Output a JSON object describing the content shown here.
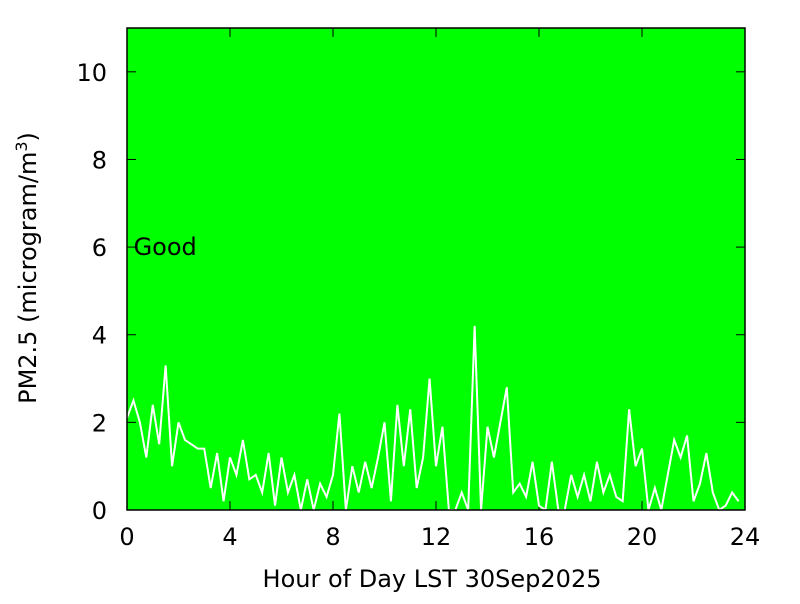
{
  "chart_data": {
    "type": "line",
    "xlabel": "Hour of Day LST 30Sep2025",
    "ylabel_parts": [
      "PM2.5 (microgram/m",
      "3",
      ")"
    ],
    "annotation": {
      "text": "Good",
      "x": 0.1,
      "y": 6
    },
    "background": "#00ff00",
    "xlim": [
      0,
      24
    ],
    "xticks": [
      0,
      4,
      8,
      12,
      16,
      20,
      24
    ],
    "ylim": [
      0,
      11
    ],
    "yticks": [
      0,
      2,
      4,
      6,
      8,
      10
    ],
    "series": [
      {
        "color": "#ffffff",
        "x": [
          0,
          0.25,
          0.5,
          0.75,
          1,
          1.25,
          1.5,
          1.75,
          2,
          2.25,
          2.5,
          2.75,
          3,
          3.25,
          3.5,
          3.75,
          4,
          4.25,
          4.5,
          4.75,
          5,
          5.25,
          5.5,
          5.75,
          6,
          6.25,
          6.5,
          6.75,
          7,
          7.25,
          7.5,
          7.75,
          8,
          8.25,
          8.5,
          8.75,
          9,
          9.25,
          9.5,
          9.75,
          10,
          10.25,
          10.5,
          10.75,
          11,
          11.25,
          11.5,
          11.75,
          12,
          12.25,
          12.5,
          12.75,
          13,
          13.25,
          13.5,
          13.75,
          14,
          14.25,
          14.5,
          14.75,
          15,
          15.25,
          15.5,
          15.75,
          16,
          16.25,
          16.5,
          16.75,
          17,
          17.25,
          17.5,
          17.75,
          18,
          18.25,
          18.5,
          18.75,
          19,
          19.25,
          19.5,
          19.75,
          20,
          20.25,
          20.5,
          20.75,
          21,
          21.25,
          21.5,
          21.75,
          22,
          22.25,
          22.5,
          22.75,
          23,
          23.25,
          23.5,
          23.75
        ],
        "values": [
          2.1,
          2.5,
          2.0,
          1.2,
          2.4,
          1.5,
          3.3,
          1.0,
          2.0,
          1.6,
          1.5,
          1.4,
          1.4,
          0.5,
          1.3,
          0.2,
          1.2,
          0.8,
          1.6,
          0.7,
          0.8,
          0.4,
          1.3,
          0.1,
          1.2,
          0.4,
          0.8,
          0,
          0.7,
          0,
          0.6,
          0.3,
          0.8,
          2.2,
          0,
          1.0,
          0.4,
          1.1,
          0.5,
          1.2,
          2.0,
          0.2,
          2.4,
          1.0,
          2.3,
          0.5,
          1.2,
          3.0,
          1.0,
          1.9,
          0,
          0,
          0.4,
          0,
          4.2,
          0,
          1.9,
          1.2,
          2.0,
          2.8,
          0.4,
          0.6,
          0.3,
          1.1,
          0.1,
          0,
          1.1,
          0,
          0,
          0.8,
          0.3,
          0.8,
          0.2,
          1.1,
          0.4,
          0.8,
          0.3,
          0.2,
          2.3,
          1.0,
          1.4,
          0,
          0.5,
          0,
          0.8,
          1.6,
          1.2,
          1.7,
          0.2,
          0.6,
          1.3,
          0.4,
          0,
          0.1,
          0.4,
          0.2
        ]
      }
    ]
  }
}
